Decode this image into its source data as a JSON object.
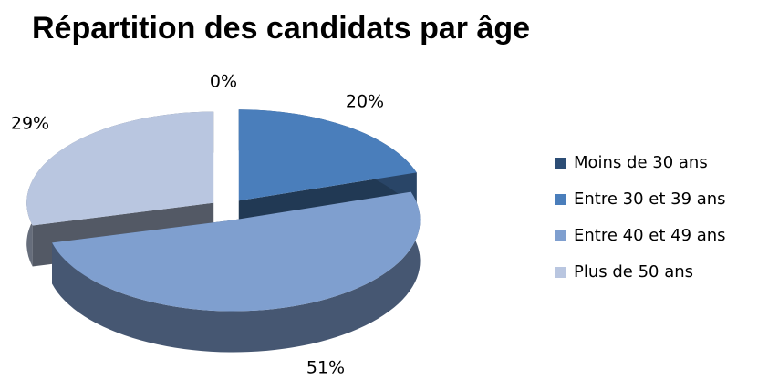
{
  "chart_data": {
    "type": "pie3d",
    "title": "Répartition des candidats par âge",
    "categories": [
      "Moins de 30 ans",
      "Entre 30 et 39 ans",
      "Entre 40 et 49 ans",
      "Plus de 50 ans"
    ],
    "values": [
      0,
      20,
      51,
      29
    ],
    "value_labels": [
      "0%",
      "20%",
      "51%",
      "29%"
    ],
    "colors": [
      "#2c4d75",
      "#4a7ebb",
      "#7f9fcf",
      "#b9c6e0"
    ],
    "legend": "right"
  }
}
